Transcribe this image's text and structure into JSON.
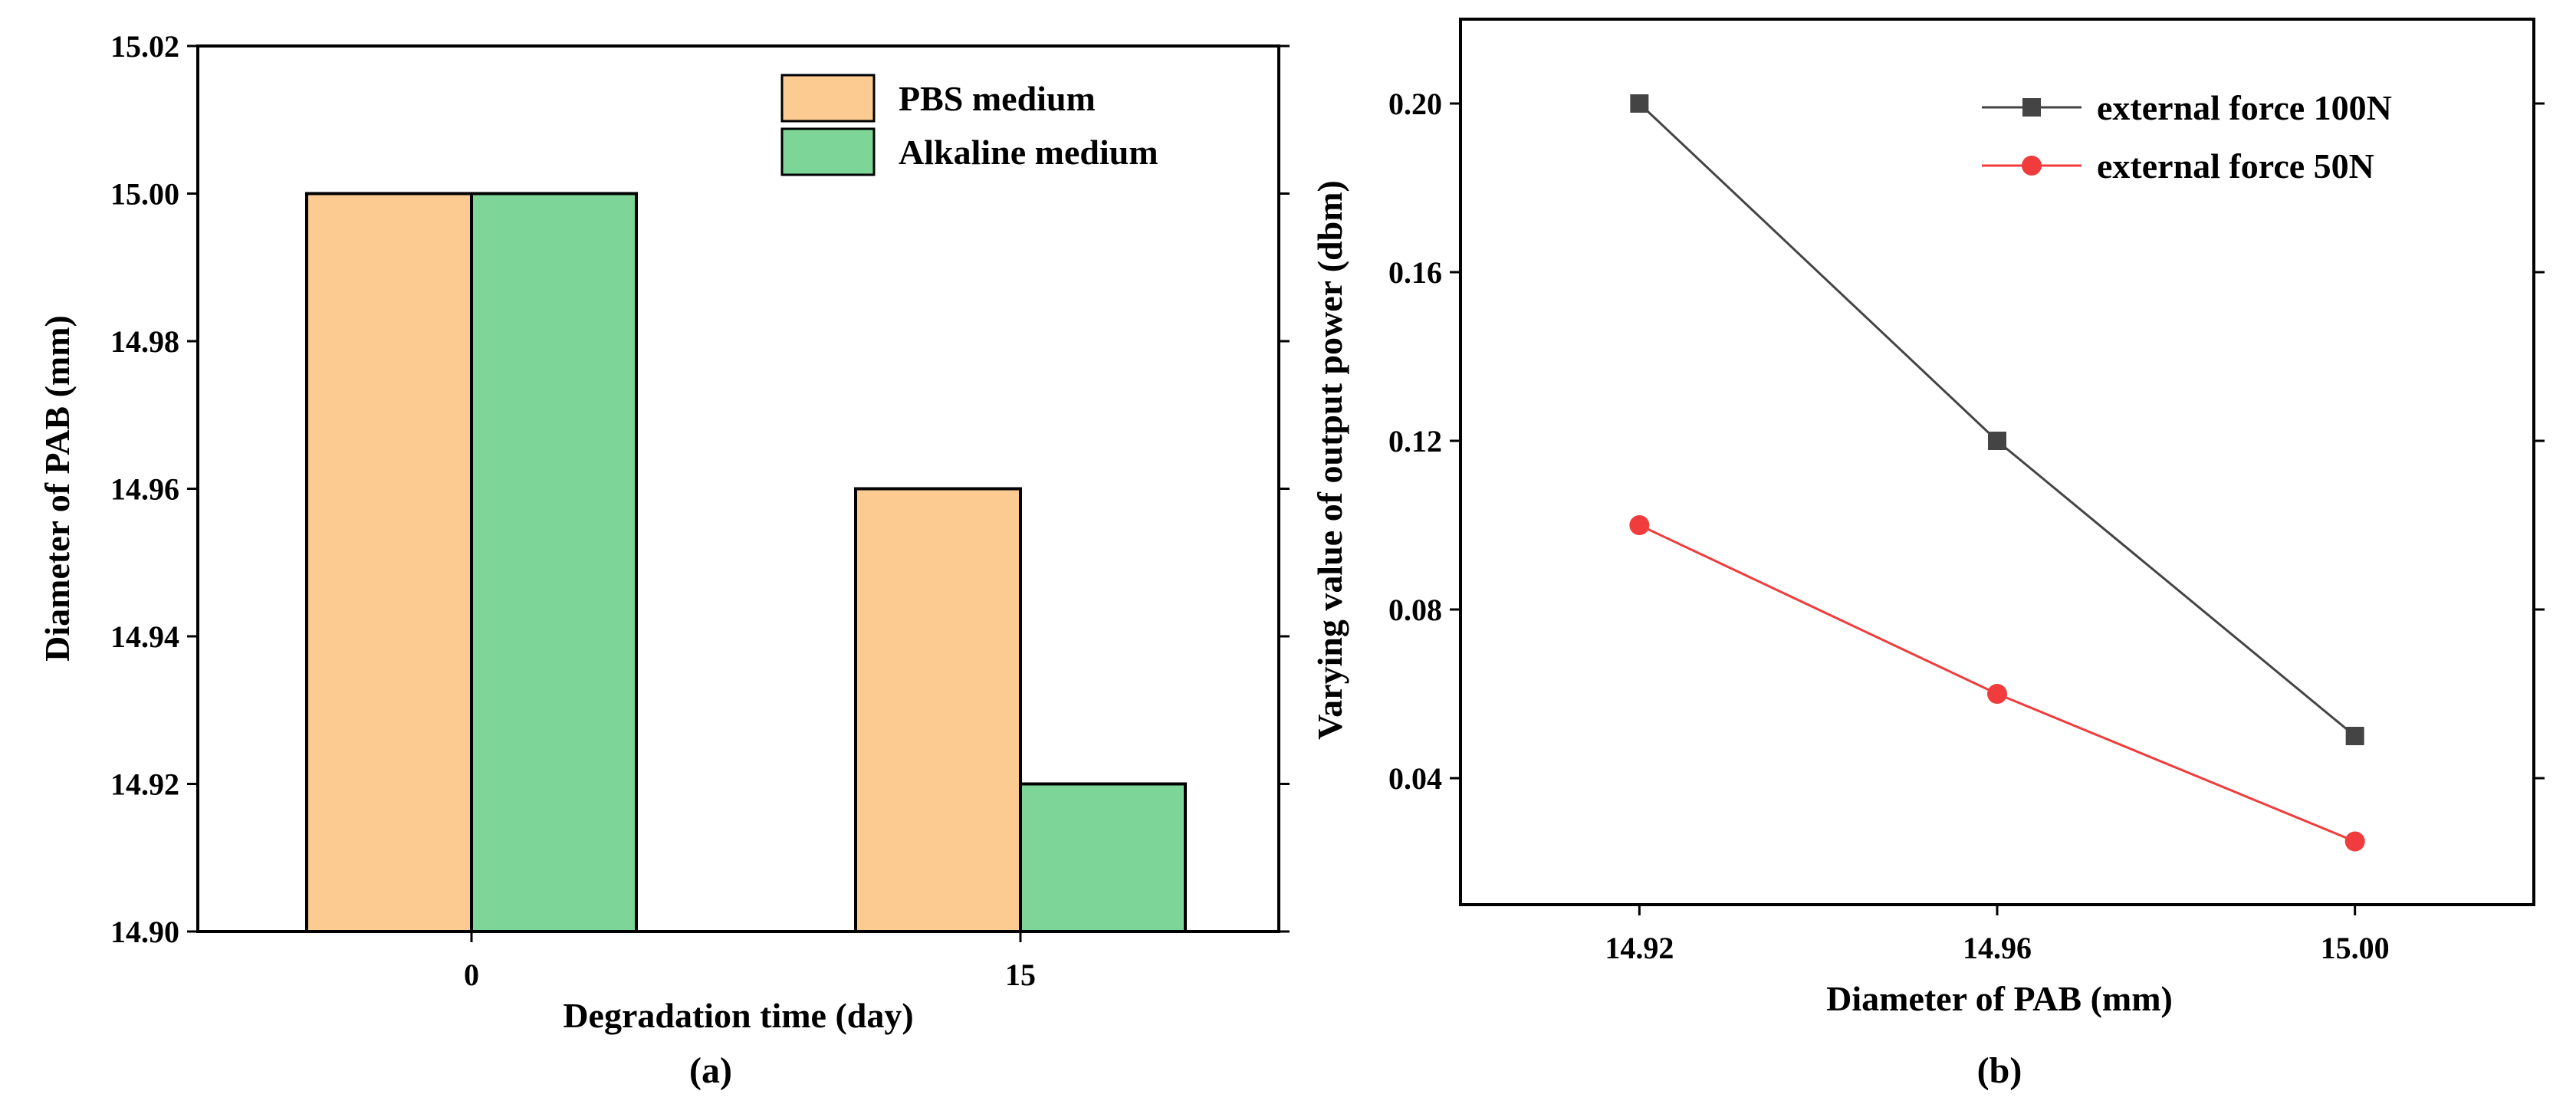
{
  "chart_data": [
    {
      "type": "bar",
      "panel_label": "(a)",
      "categories": [
        "0",
        "15"
      ],
      "series": [
        {
          "name": "PBS medium",
          "values": [
            15.0,
            14.96
          ],
          "color": "#FCCB91"
        },
        {
          "name": "Alkaline medium",
          "values": [
            15.0,
            14.92
          ],
          "color": "#7DD697"
        }
      ],
      "xlabel": "Degradation time (day)",
      "ylabel": "Diameter of PAB (mm)",
      "ylim": [
        14.9,
        15.02
      ],
      "yticks": [
        "14.90",
        "14.92",
        "14.94",
        "14.96",
        "14.98",
        "15.00",
        "15.02"
      ],
      "legend_position": "top-right",
      "grid": false
    },
    {
      "type": "line",
      "panel_label": "(b)",
      "x": [
        14.92,
        14.96,
        15.0
      ],
      "xticks": [
        "14.92",
        "14.96",
        "15.00"
      ],
      "series": [
        {
          "name": "external force 100N",
          "values": [
            0.2,
            0.12,
            0.05
          ],
          "color": "#444444",
          "marker": "square"
        },
        {
          "name": "external force 50N",
          "values": [
            0.1,
            0.06,
            0.025
          ],
          "color": "#F03C3C",
          "marker": "circle"
        }
      ],
      "xlabel": "Diameter of PAB (mm)",
      "ylabel": "Varying value of output power (dbm)",
      "xlim": [
        14.9,
        15.02
      ],
      "ylim": [
        0.01,
        0.22
      ],
      "yticks": [
        "0.04",
        "0.08",
        "0.12",
        "0.16",
        "0.20"
      ],
      "legend_position": "top-right",
      "grid": false
    }
  ]
}
